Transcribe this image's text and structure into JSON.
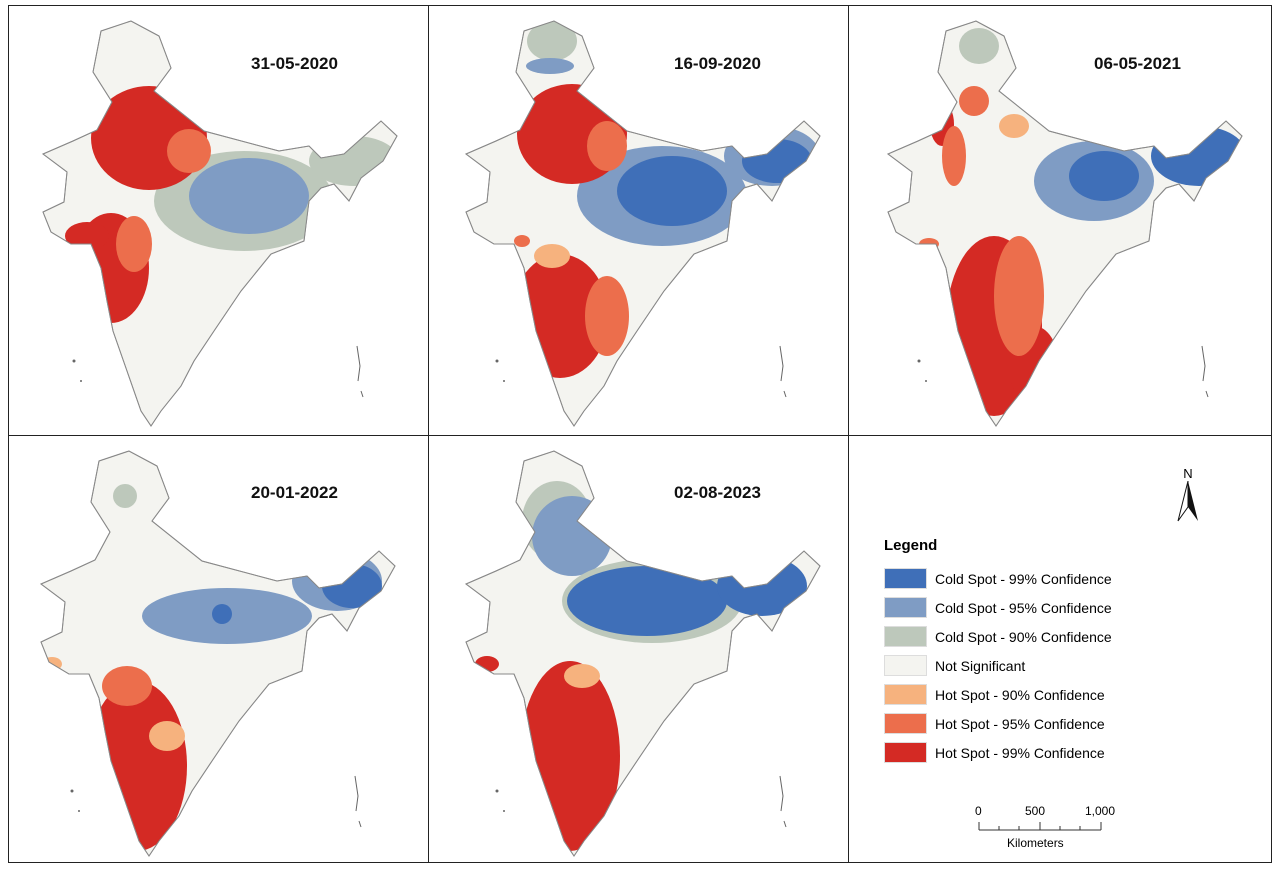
{
  "maps": [
    {
      "date": "31-05-2020"
    },
    {
      "date": "16-09-2020"
    },
    {
      "date": "06-05-2021"
    },
    {
      "date": "20-01-2022"
    },
    {
      "date": "02-08-2023"
    }
  ],
  "legend": {
    "title": "Legend",
    "items": [
      {
        "label": "Cold Spot - 99% Confidence",
        "color": "#3f6fb8"
      },
      {
        "label": "Cold Spot - 95% Confidence",
        "color": "#7f9cc4"
      },
      {
        "label": "Cold Spot - 90% Confidence",
        "color": "#bdc8bb"
      },
      {
        "label": "Not Significant",
        "color": "#f4f4f0"
      },
      {
        "label": "Hot Spot - 90% Confidence",
        "color": "#f6b27e"
      },
      {
        "label": "Hot Spot - 95% Confidence",
        "color": "#ec6e4c"
      },
      {
        "label": "Hot Spot - 99% Confidence",
        "color": "#d42a24"
      }
    ]
  },
  "north": "N",
  "scale": {
    "ticks": [
      "0",
      "500",
      "1,000"
    ],
    "unit": "Kilometers"
  }
}
